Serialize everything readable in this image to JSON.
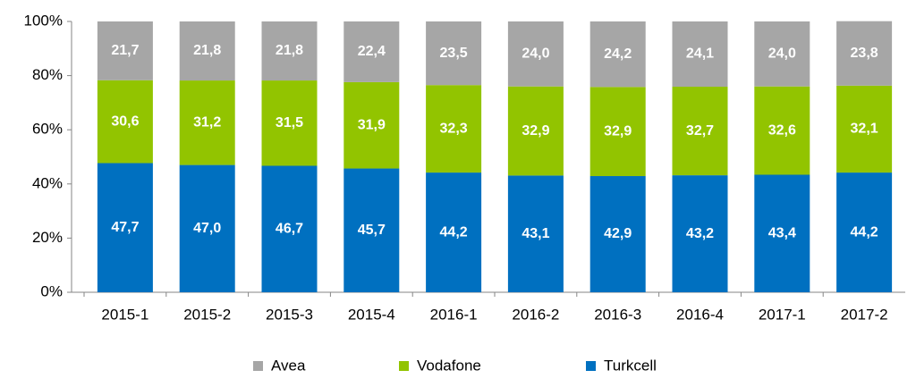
{
  "chart_data": {
    "type": "stacked_bar",
    "categories": [
      "2015-1",
      "2015-2",
      "2015-3",
      "2015-4",
      "2016-1",
      "2016-2",
      "2016-3",
      "2016-4",
      "2017-1",
      "2017-2"
    ],
    "series": [
      {
        "name": "Avea",
        "color": "#a6a6a6",
        "values": [
          21.7,
          21.8,
          21.8,
          22.4,
          23.5,
          24.0,
          24.2,
          24.1,
          24.0,
          23.8
        ],
        "value_labels": [
          "21,7",
          "21,8",
          "21,8",
          "22,4",
          "23,5",
          "24,0",
          "24,2",
          "24,1",
          "24,0",
          "23,8"
        ]
      },
      {
        "name": "Vodafone",
        "color": "#92c400",
        "values": [
          30.6,
          31.2,
          31.5,
          31.9,
          32.3,
          32.9,
          32.9,
          32.7,
          32.6,
          32.1
        ],
        "value_labels": [
          "30,6",
          "31,2",
          "31,5",
          "31,9",
          "32,3",
          "32,9",
          "32,9",
          "32,7",
          "32,6",
          "32,1"
        ]
      },
      {
        "name": "Turkcell",
        "color": "#0070c0",
        "values": [
          47.7,
          47.0,
          46.7,
          45.7,
          44.2,
          43.1,
          42.9,
          43.2,
          43.4,
          44.2
        ],
        "value_labels": [
          "47,7",
          "47,0",
          "46,7",
          "45,7",
          "44,2",
          "43,1",
          "42,9",
          "43,2",
          "43,4",
          "44,2"
        ]
      }
    ],
    "ylim": [
      0,
      100
    ],
    "yticks": [
      {
        "value": 0,
        "label": "0%"
      },
      {
        "value": 20,
        "label": "20%"
      },
      {
        "value": 40,
        "label": "40%"
      },
      {
        "value": 60,
        "label": "60%"
      },
      {
        "value": 80,
        "label": "80%"
      },
      {
        "value": 100,
        "label": "100%"
      }
    ],
    "legend": "bottom"
  }
}
